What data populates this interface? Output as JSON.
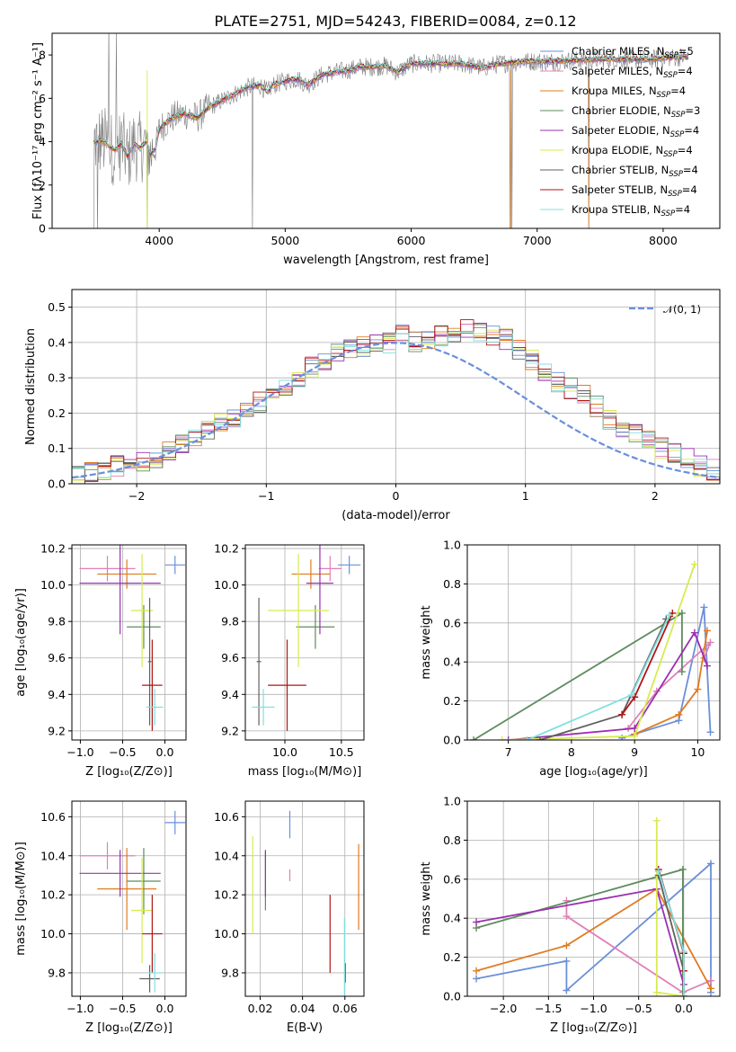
{
  "figure_title": "PLATE=2751, MJD=54243, FIBERID=0084, z=0.12",
  "colors": {
    "Chabrier MILES": "#6a8fdb",
    "Salpeter MILES": "#e080b8",
    "Kroupa MILES": "#e07b20",
    "Chabrier ELODIE": "#5e8c5e",
    "Salpeter ELODIE": "#9b30b0",
    "Kroupa ELODIE": "#d8ea50",
    "Chabrier STELIB": "#606060",
    "Salpeter STELIB": "#b01515",
    "Kroupa STELIB": "#80e0e0",
    "spectrum": "#808080",
    "gaussian": "#6a8fdb"
  },
  "chart_data": [
    {
      "type": "line",
      "panel": "spectrum",
      "xlabel": "wavelength [Angstrom, rest frame]",
      "ylabel": "Flux [fλ10⁻¹⁷ erg cm⁻² s⁻¹ A⁻¹]",
      "xlim": [
        3150,
        8450
      ],
      "ylim": [
        0,
        9
      ],
      "xticks": [
        "4000",
        "5000",
        "6000",
        "7000",
        "8000"
      ],
      "yticks": [
        "0",
        "2",
        "4",
        "6",
        "8"
      ],
      "legend_position": "upper-right",
      "legend": [
        {
          "base": "Chabrier MILES, N",
          "sub": "SSP",
          "tail": "=5",
          "color_key": "Chabrier MILES"
        },
        {
          "base": "Salpeter MILES, N",
          "sub": "SSP",
          "tail": "=4",
          "color_key": "Salpeter MILES"
        },
        {
          "base": "Kroupa MILES, N",
          "sub": "SSP",
          "tail": "=4",
          "color_key": "Kroupa MILES"
        },
        {
          "base": "Chabrier ELODIE, N",
          "sub": "SSP",
          "tail": "=3",
          "color_key": "Chabrier ELODIE"
        },
        {
          "base": "Salpeter ELODIE, N",
          "sub": "SSP",
          "tail": "=4",
          "color_key": "Salpeter ELODIE"
        },
        {
          "base": "Kroupa ELODIE, N",
          "sub": "SSP",
          "tail": "=4",
          "color_key": "Kroupa ELODIE"
        },
        {
          "base": "Chabrier STELIB, N",
          "sub": "SSP",
          "tail": "=4",
          "color_key": "Chabrier STELIB"
        },
        {
          "base": "Salpeter STELIB, N",
          "sub": "SSP",
          "tail": "=4",
          "color_key": "Salpeter STELIB"
        },
        {
          "base": "Kroupa STELIB, N",
          "sub": "SSP",
          "tail": "=4",
          "color_key": "Kroupa STELIB"
        }
      ],
      "model_envelope": [
        [
          3480,
          4.0
        ],
        [
          3550,
          4.05
        ],
        [
          3600,
          3.8
        ],
        [
          3650,
          3.6
        ],
        [
          3700,
          3.9
        ],
        [
          3750,
          3.3
        ],
        [
          3800,
          3.9
        ],
        [
          3850,
          3.7
        ],
        [
          3900,
          4.0
        ],
        [
          3930,
          3.4
        ],
        [
          3970,
          3.7
        ],
        [
          4000,
          4.6
        ],
        [
          4100,
          5.1
        ],
        [
          4200,
          5.3
        ],
        [
          4300,
          5.1
        ],
        [
          4400,
          5.6
        ],
        [
          4500,
          5.9
        ],
        [
          4600,
          6.2
        ],
        [
          4700,
          6.5
        ],
        [
          4800,
          6.6
        ],
        [
          4861,
          6.3
        ],
        [
          4900,
          6.6
        ],
        [
          5000,
          6.8
        ],
        [
          5100,
          6.9
        ],
        [
          5175,
          6.6
        ],
        [
          5300,
          7.1
        ],
        [
          5400,
          7.2
        ],
        [
          5500,
          7.3
        ],
        [
          5600,
          7.45
        ],
        [
          5700,
          7.45
        ],
        [
          5800,
          7.5
        ],
        [
          5890,
          7.2
        ],
        [
          6000,
          7.6
        ],
        [
          6200,
          7.6
        ],
        [
          6400,
          7.6
        ],
        [
          6563,
          7.4
        ],
        [
          6700,
          7.6
        ],
        [
          6900,
          7.7
        ],
        [
          7100,
          7.7
        ],
        [
          7300,
          7.75
        ],
        [
          7500,
          7.8
        ],
        [
          7700,
          7.8
        ],
        [
          7900,
          7.8
        ],
        [
          8100,
          7.9
        ],
        [
          8200,
          7.9
        ]
      ],
      "spectrum_dropouts": [
        3480,
        3510,
        3905,
        4740,
        6785,
        6800,
        7410
      ]
    },
    {
      "type": "bar",
      "panel": "residual-histogram",
      "xlabel": "(data-model)/error",
      "ylabel": "Normed distribution",
      "xlim": [
        -2.5,
        2.5
      ],
      "ylim": [
        0,
        0.55
      ],
      "xticks": [
        "−2",
        "−1",
        "0",
        "1",
        "2"
      ],
      "yticks": [
        "0.0",
        "0.1",
        "0.2",
        "0.3",
        "0.4",
        "0.5"
      ],
      "legend_position": "upper-right",
      "legend": [
        {
          "label": "𝒩(0, 1)",
          "color_key": "gaussian"
        }
      ],
      "bin_edges_start": -2.5,
      "bin_width": 0.1,
      "base_values": [
        0.02,
        0.03,
        0.03,
        0.05,
        0.05,
        0.06,
        0.07,
        0.09,
        0.11,
        0.13,
        0.15,
        0.17,
        0.19,
        0.21,
        0.23,
        0.26,
        0.28,
        0.3,
        0.33,
        0.35,
        0.37,
        0.38,
        0.39,
        0.4,
        0.4,
        0.43,
        0.4,
        0.41,
        0.42,
        0.43,
        0.44,
        0.43,
        0.42,
        0.41,
        0.38,
        0.35,
        0.32,
        0.29,
        0.27,
        0.25,
        0.22,
        0.18,
        0.16,
        0.14,
        0.12,
        0.1,
        0.09,
        0.07,
        0.05,
        0.04
      ]
    },
    {
      "type": "scatter",
      "panel": "age-vs-Z",
      "xlabel": "Z [log₁₀(Z/Z⊙)]",
      "ylabel": "age  [log₁₀(age/yr)]",
      "xlim": [
        -1.1,
        0.25
      ],
      "ylim": [
        9.15,
        10.22
      ],
      "xticks": [
        "−1.0",
        "−0.5",
        "0.0"
      ],
      "yticks": [
        "9.2",
        "9.4",
        "9.6",
        "9.8",
        "10.0",
        "10.2"
      ],
      "points": [
        {
          "key": "Chabrier MILES",
          "x": 0.12,
          "y": 10.11,
          "xe": 0.12,
          "ye": 0.05
        },
        {
          "key": "Salpeter MILES",
          "x": -0.68,
          "y": 10.09,
          "xe": 0.33,
          "ye": 0.07
        },
        {
          "key": "Kroupa MILES",
          "x": -0.45,
          "y": 10.06,
          "xe": 0.35,
          "ye": 0.08
        },
        {
          "key": "Chabrier ELODIE",
          "x": -0.25,
          "y": 9.77,
          "xe": 0.2,
          "ye": 0.12
        },
        {
          "key": "Salpeter ELODIE",
          "x": -0.53,
          "y": 10.01,
          "xe": 0.48,
          "ye": 0.28
        },
        {
          "key": "Kroupa ELODIE",
          "x": -0.27,
          "y": 9.86,
          "xe": 0.13,
          "ye": 0.31
        },
        {
          "key": "Chabrier STELIB",
          "x": -0.18,
          "y": 9.58,
          "xe": 0.02,
          "ye": 0.35
        },
        {
          "key": "Salpeter STELIB",
          "x": -0.15,
          "y": 9.45,
          "xe": 0.12,
          "ye": 0.25
        },
        {
          "key": "Kroupa STELIB",
          "x": -0.12,
          "y": 9.33,
          "xe": 0.1,
          "ye": 0.1
        }
      ]
    },
    {
      "type": "scatter",
      "panel": "age-vs-mass",
      "xlabel": "mass [log₁₀(M/M⊙)]",
      "ylabel": "",
      "xlim": [
        9.65,
        10.7
      ],
      "ylim": [
        9.15,
        10.22
      ],
      "xticks": [
        "10.0",
        "10.5"
      ],
      "yticks": [
        "9.2",
        "9.4",
        "9.6",
        "9.8",
        "10.0",
        "10.2"
      ],
      "points": [
        {
          "key": "Chabrier MILES",
          "x": 10.57,
          "y": 10.11,
          "xe": 0.1,
          "ye": 0.05
        },
        {
          "key": "Salpeter MILES",
          "x": 10.4,
          "y": 10.09,
          "xe": 0.1,
          "ye": 0.07
        },
        {
          "key": "Kroupa MILES",
          "x": 10.23,
          "y": 10.06,
          "xe": 0.17,
          "ye": 0.08
        },
        {
          "key": "Chabrier ELODIE",
          "x": 10.27,
          "y": 9.77,
          "xe": 0.17,
          "ye": 0.12
        },
        {
          "key": "Salpeter ELODIE",
          "x": 10.31,
          "y": 10.01,
          "xe": 0.12,
          "ye": 0.28
        },
        {
          "key": "Kroupa ELODIE",
          "x": 10.12,
          "y": 9.86,
          "xe": 0.27,
          "ye": 0.31
        },
        {
          "key": "Chabrier STELIB",
          "x": 9.77,
          "y": 9.58,
          "xe": 0.02,
          "ye": 0.35
        },
        {
          "key": "Salpeter STELIB",
          "x": 10.02,
          "y": 9.45,
          "xe": 0.17,
          "ye": 0.25
        },
        {
          "key": "Kroupa STELIB",
          "x": 9.81,
          "y": 9.33,
          "xe": 0.1,
          "ye": 0.1
        }
      ]
    },
    {
      "type": "line",
      "panel": "mass-weight-vs-age",
      "xlabel": "age  [log₁₀(age/yr)]",
      "ylabel": "mass weight",
      "xlim": [
        6.35,
        10.35
      ],
      "ylim": [
        0,
        1
      ],
      "xticks": [
        "7",
        "8",
        "9",
        "10"
      ],
      "yticks": [
        "0.0",
        "0.2",
        "0.4",
        "0.6",
        "0.8",
        "1.0"
      ],
      "series": [
        {
          "key": "Chabrier MILES",
          "x": [
            8.8,
            9.7,
            10.1,
            10.2
          ],
          "y": [
            0.01,
            0.1,
            0.68,
            0.04
          ]
        },
        {
          "key": "Salpeter MILES",
          "x": [
            8.9,
            9.35,
            10.2,
            10.1
          ],
          "y": [
            0.06,
            0.25,
            0.5,
            0.42
          ]
        },
        {
          "key": "Kroupa MILES",
          "x": [
            9.0,
            9.7,
            10.0,
            10.15
          ],
          "y": [
            0.03,
            0.13,
            0.26,
            0.56
          ]
        },
        {
          "key": "Chabrier ELODIE",
          "x": [
            6.45,
            9.75,
            9.75
          ],
          "y": [
            0.0,
            0.65,
            0.35
          ]
        },
        {
          "key": "Salpeter ELODIE",
          "x": [
            7.0,
            9.0,
            9.95,
            10.15
          ],
          "y": [
            0.0,
            0.06,
            0.55,
            0.38
          ]
        },
        {
          "key": "Kroupa ELODIE",
          "x": [
            6.9,
            9.0,
            9.95
          ],
          "y": [
            0.0,
            0.02,
            0.9
          ]
        },
        {
          "key": "Chabrier STELIB",
          "x": [
            7.5,
            8.8,
            9.5
          ],
          "y": [
            0.0,
            0.13,
            0.62
          ]
        },
        {
          "key": "Salpeter STELIB",
          "x": [
            8.8,
            9.0,
            9.6
          ],
          "y": [
            0.13,
            0.22,
            0.65
          ]
        },
        {
          "key": "Kroupa STELIB",
          "x": [
            7.3,
            8.95,
            9.55
          ],
          "y": [
            0.0,
            0.23,
            0.64
          ]
        }
      ]
    },
    {
      "type": "scatter",
      "panel": "mass-vs-Z",
      "xlabel": "Z [log₁₀(Z/Z⊙)]",
      "ylabel": "mass [log₁₀(M/M⊙)]",
      "xlim": [
        -1.1,
        0.25
      ],
      "ylim": [
        9.68,
        10.68
      ],
      "xticks": [
        "−1.0",
        "−0.5",
        "0.0"
      ],
      "yticks": [
        "9.8",
        "10.0",
        "10.2",
        "10.4",
        "10.6"
      ],
      "points": [
        {
          "key": "Chabrier MILES",
          "x": 0.12,
          "y": 10.57,
          "xe": 0.12,
          "ye": 0.06
        },
        {
          "key": "Salpeter MILES",
          "x": -0.68,
          "y": 10.4,
          "xe": 0.33,
          "ye": 0.07
        },
        {
          "key": "Kroupa MILES",
          "x": -0.45,
          "y": 10.23,
          "xe": 0.35,
          "ye": 0.21
        },
        {
          "key": "Chabrier ELODIE",
          "x": -0.25,
          "y": 10.27,
          "xe": 0.2,
          "ye": 0.17
        },
        {
          "key": "Salpeter ELODIE",
          "x": -0.53,
          "y": 10.31,
          "xe": 0.48,
          "ye": 0.12
        },
        {
          "key": "Kroupa ELODIE",
          "x": -0.27,
          "y": 10.12,
          "xe": 0.13,
          "ye": 0.27
        },
        {
          "key": "Chabrier STELIB",
          "x": -0.18,
          "y": 9.77,
          "xe": 0.12,
          "ye": 0.07
        },
        {
          "key": "Salpeter STELIB",
          "x": -0.15,
          "y": 10.0,
          "xe": 0.12,
          "ye": 0.2
        },
        {
          "key": "Kroupa STELIB",
          "x": -0.12,
          "y": 9.8,
          "xe": 0.08,
          "ye": 0.1
        }
      ]
    },
    {
      "type": "scatter",
      "panel": "mass-vs-EBV",
      "xlabel": "E(B-V)",
      "ylabel": "",
      "xlim": [
        0.013,
        0.069
      ],
      "ylim": [
        9.68,
        10.68
      ],
      "xticks": [
        "0.02",
        "0.04",
        "0.06"
      ],
      "yticks": [
        "9.8",
        "10.0",
        "10.2",
        "10.4",
        "10.6"
      ],
      "points": [
        {
          "key": "Chabrier MILES",
          "x": 0.034,
          "y": 10.56,
          "xe": 0,
          "ye": 0.07
        },
        {
          "key": "Salpeter MILES",
          "x": 0.034,
          "y": 10.3,
          "xe": 0,
          "ye": 0.03
        },
        {
          "key": "Kroupa MILES",
          "x": 0.0665,
          "y": 10.24,
          "xe": 0,
          "ye": 0.22
        },
        {
          "key": "Chabrier ELODIE",
          "x": 0.0225,
          "y": 10.27,
          "xe": 0,
          "ye": 0.15
        },
        {
          "key": "Salpeter ELODIE",
          "x": 0.0225,
          "y": 10.31,
          "xe": 0,
          "ye": 0.12
        },
        {
          "key": "Kroupa ELODIE",
          "x": 0.0165,
          "y": 10.25,
          "xe": 0,
          "ye": 0.25
        },
        {
          "key": "Chabrier STELIB",
          "x": 0.0602,
          "y": 9.8,
          "xe": 0,
          "ye": 0.05
        },
        {
          "key": "Salpeter STELIB",
          "x": 0.053,
          "y": 10.0,
          "xe": 0,
          "ye": 0.2
        },
        {
          "key": "Kroupa STELIB",
          "x": 0.0598,
          "y": 9.82,
          "xe": 0,
          "ye": 0.26
        }
      ]
    },
    {
      "type": "line",
      "panel": "mass-weight-vs-Z",
      "xlabel": "Z [log₁₀(Z/Z⊙)]",
      "ylabel": "mass weight",
      "xlim": [
        -2.4,
        0.4
      ],
      "ylim": [
        0,
        1
      ],
      "xticks": [
        "−2.0",
        "−1.5",
        "−1.0",
        "−0.5",
        "0.0"
      ],
      "yticks": [
        "0.0",
        "0.2",
        "0.4",
        "0.6",
        "0.8",
        "1.0"
      ],
      "series": [
        {
          "key": "Chabrier MILES",
          "x": [
            -2.3,
            -1.3,
            -1.3,
            0.3,
            0.3
          ],
          "y": [
            0.09,
            0.18,
            0.03,
            0.68,
            0.02
          ]
        },
        {
          "key": "Salpeter MILES",
          "x": [
            -1.3,
            -1.3,
            -0.01,
            0.3
          ],
          "y": [
            0.49,
            0.41,
            0.02,
            0.08
          ]
        },
        {
          "key": "Kroupa MILES",
          "x": [
            -2.3,
            -1.3,
            -0.3,
            0.3
          ],
          "y": [
            0.13,
            0.26,
            0.55,
            0.04
          ]
        },
        {
          "key": "Chabrier ELODIE",
          "x": [
            -2.3,
            -0.01,
            -0.01
          ],
          "y": [
            0.35,
            0.65,
            0.0
          ]
        },
        {
          "key": "Salpeter ELODIE",
          "x": [
            -2.3,
            -0.3,
            0.0
          ],
          "y": [
            0.38,
            0.55,
            0.06
          ]
        },
        {
          "key": "Kroupa ELODIE",
          "x": [
            -0.3,
            -0.3,
            0.0
          ],
          "y": [
            0.9,
            0.02,
            0.0
          ]
        },
        {
          "key": "Chabrier STELIB",
          "x": [
            -0.28,
            0.0,
            0.0
          ],
          "y": [
            0.62,
            0.13,
            0.0
          ]
        },
        {
          "key": "Salpeter STELIB",
          "x": [
            -0.28,
            0.0,
            0.0
          ],
          "y": [
            0.65,
            0.22,
            0.13
          ]
        },
        {
          "key": "Kroupa STELIB",
          "x": [
            -0.28,
            0.0,
            0.0
          ],
          "y": [
            0.64,
            0.23,
            0.0
          ]
        }
      ]
    }
  ]
}
